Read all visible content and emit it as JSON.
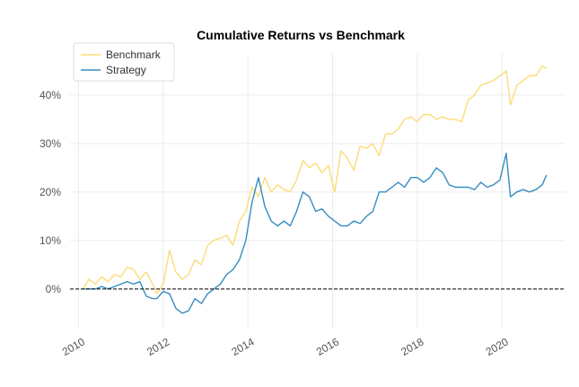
{
  "chart_data": {
    "type": "line",
    "title": "Cumulative Returns vs Benchmark",
    "xlabel": "",
    "ylabel": "",
    "xlim": [
      2009.8,
      2021.5
    ],
    "ylim": [
      -0.08,
      0.485
    ],
    "x_ticks": [
      2010,
      2012,
      2014,
      2016,
      2018,
      2020
    ],
    "x_tick_labels": [
      "2010",
      "2012",
      "2014",
      "2016",
      "2018",
      "2020"
    ],
    "y_ticks": [
      0,
      0.1,
      0.2,
      0.3,
      0.4
    ],
    "y_tick_labels": [
      "0%",
      "10%",
      "20%",
      "30%",
      "40%"
    ],
    "grid": true,
    "legend_position": "top-left",
    "zero_line": {
      "y": 0,
      "style": "dashed",
      "color": "#000000"
    },
    "series": [
      {
        "name": "Benchmark",
        "color": "#fcdc78",
        "x": [
          2010.1,
          2010.25,
          2010.4,
          2010.55,
          2010.7,
          2010.85,
          2011.0,
          2011.15,
          2011.3,
          2011.45,
          2011.6,
          2011.75,
          2011.85,
          2012.0,
          2012.15,
          2012.3,
          2012.45,
          2012.6,
          2012.75,
          2012.9,
          2013.05,
          2013.2,
          2013.35,
          2013.5,
          2013.65,
          2013.8,
          2013.95,
          2014.1,
          2014.25,
          2014.4,
          2014.55,
          2014.7,
          2014.85,
          2015.0,
          2015.15,
          2015.3,
          2015.45,
          2015.6,
          2015.75,
          2015.9,
          2016.05,
          2016.2,
          2016.35,
          2016.5,
          2016.65,
          2016.8,
          2016.95,
          2017.1,
          2017.25,
          2017.4,
          2017.55,
          2017.7,
          2017.85,
          2018.0,
          2018.15,
          2018.3,
          2018.45,
          2018.6,
          2018.75,
          2018.9,
          2019.05,
          2019.2,
          2019.35,
          2019.5,
          2019.65,
          2019.8,
          2019.95,
          2020.1,
          2020.2,
          2020.35,
          2020.5,
          2020.65,
          2020.8,
          2020.95,
          2021.05
        ],
        "y": [
          0.0,
          0.02,
          0.01,
          0.025,
          0.015,
          0.03,
          0.025,
          0.045,
          0.04,
          0.02,
          0.035,
          0.01,
          -0.01,
          0.01,
          0.08,
          0.035,
          0.02,
          0.03,
          0.06,
          0.05,
          0.09,
          0.1,
          0.105,
          0.11,
          0.09,
          0.14,
          0.16,
          0.21,
          0.19,
          0.23,
          0.2,
          0.215,
          0.205,
          0.2,
          0.225,
          0.265,
          0.25,
          0.26,
          0.24,
          0.255,
          0.2,
          0.285,
          0.27,
          0.245,
          0.295,
          0.29,
          0.3,
          0.275,
          0.32,
          0.32,
          0.33,
          0.35,
          0.355,
          0.345,
          0.36,
          0.36,
          0.35,
          0.355,
          0.35,
          0.35,
          0.345,
          0.39,
          0.4,
          0.42,
          0.425,
          0.43,
          0.44,
          0.45,
          0.38,
          0.42,
          0.43,
          0.44,
          0.44,
          0.46,
          0.455
        ]
      },
      {
        "name": "Strategy",
        "color": "#348dc1",
        "x": [
          2010.1,
          2010.25,
          2010.4,
          2010.55,
          2010.7,
          2010.85,
          2011.0,
          2011.15,
          2011.3,
          2011.45,
          2011.6,
          2011.75,
          2011.85,
          2012.0,
          2012.15,
          2012.3,
          2012.45,
          2012.6,
          2012.75,
          2012.9,
          2013.05,
          2013.2,
          2013.35,
          2013.5,
          2013.65,
          2013.8,
          2013.95,
          2014.1,
          2014.25,
          2014.4,
          2014.55,
          2014.7,
          2014.85,
          2015.0,
          2015.15,
          2015.3,
          2015.45,
          2015.6,
          2015.75,
          2015.9,
          2016.05,
          2016.2,
          2016.35,
          2016.5,
          2016.65,
          2016.8,
          2016.95,
          2017.1,
          2017.25,
          2017.4,
          2017.55,
          2017.7,
          2017.85,
          2018.0,
          2018.15,
          2018.3,
          2018.45,
          2018.6,
          2018.75,
          2018.9,
          2019.05,
          2019.2,
          2019.35,
          2019.5,
          2019.65,
          2019.8,
          2019.95,
          2020.1,
          2020.2,
          2020.35,
          2020.5,
          2020.65,
          2020.8,
          2020.95,
          2021.05
        ],
        "y": [
          0.0,
          0.0,
          0.0,
          0.005,
          0.0,
          0.005,
          0.01,
          0.015,
          0.01,
          0.015,
          -0.015,
          -0.02,
          -0.02,
          -0.005,
          -0.01,
          -0.04,
          -0.05,
          -0.045,
          -0.02,
          -0.03,
          -0.01,
          0.0,
          0.01,
          0.03,
          0.04,
          0.06,
          0.1,
          0.18,
          0.23,
          0.17,
          0.14,
          0.13,
          0.14,
          0.13,
          0.16,
          0.2,
          0.19,
          0.16,
          0.165,
          0.15,
          0.14,
          0.13,
          0.13,
          0.14,
          0.135,
          0.15,
          0.16,
          0.2,
          0.2,
          0.21,
          0.22,
          0.21,
          0.23,
          0.23,
          0.22,
          0.23,
          0.25,
          0.24,
          0.215,
          0.21,
          0.21,
          0.21,
          0.205,
          0.22,
          0.21,
          0.215,
          0.225,
          0.28,
          0.19,
          0.2,
          0.205,
          0.2,
          0.205,
          0.215,
          0.235
        ]
      }
    ]
  }
}
